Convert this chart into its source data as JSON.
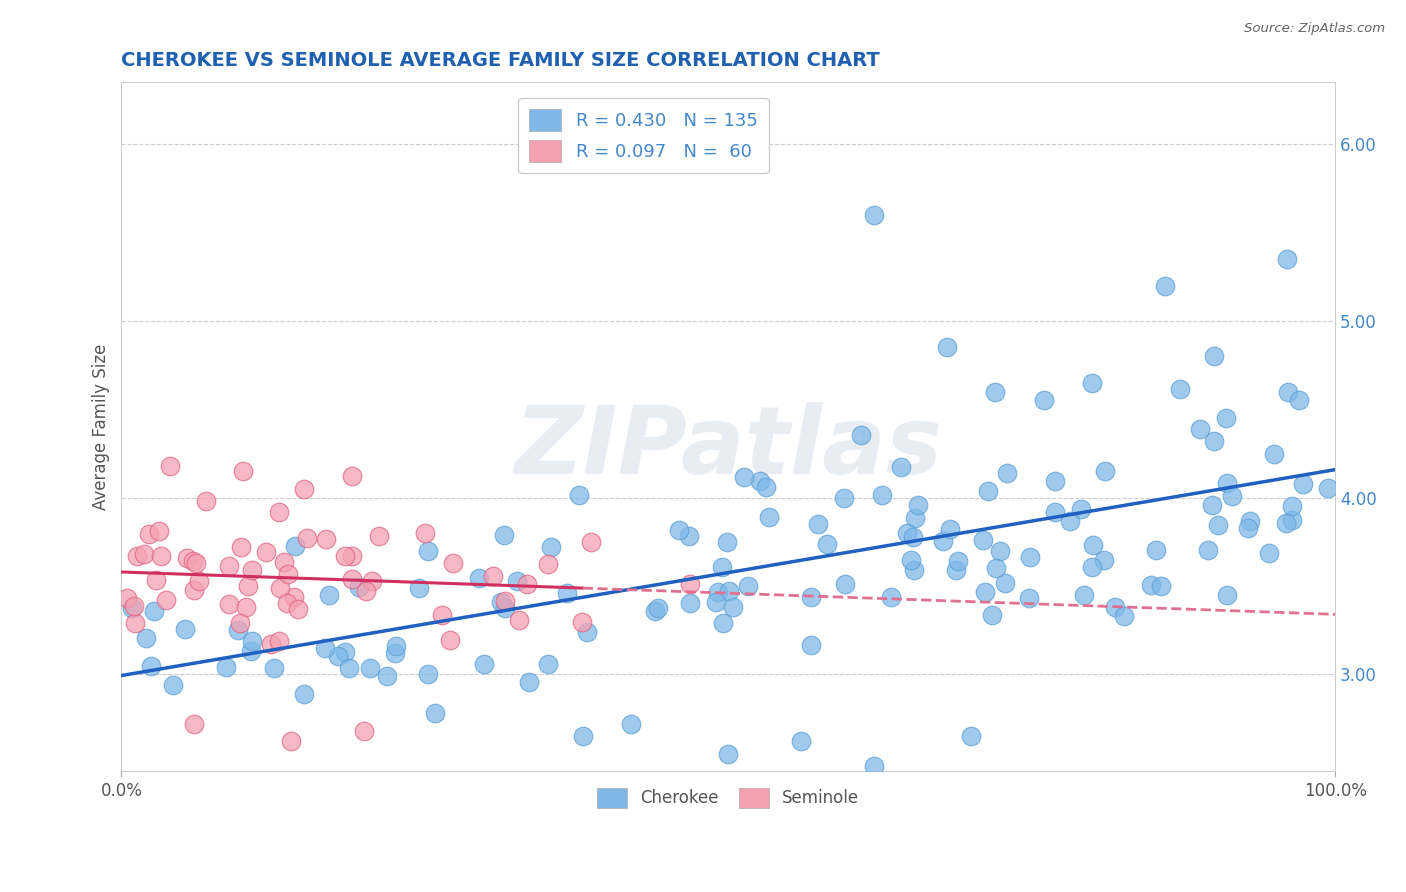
{
  "title": "CHEROKEE VS SEMINOLE AVERAGE FAMILY SIZE CORRELATION CHART",
  "source_text": "Source: ZipAtlas.com",
  "ylabel": "Average Family Size",
  "xlim": [
    0,
    1
  ],
  "ylim": [
    2.45,
    6.35
  ],
  "yticks": [
    3.0,
    4.0,
    5.0,
    6.0
  ],
  "xtick_labels": [
    "0.0%",
    "100.0%"
  ],
  "cherokee_color": "#7fb8e8",
  "cherokee_edge_color": "#5a9fd4",
  "seminole_color": "#f4a0b0",
  "seminole_edge_color": "#e06080",
  "trend_cherokee_color": "#2060c0",
  "trend_seminole_color_solid": "#d03060",
  "trend_seminole_color_dash": "#e07090",
  "watermark": "ZIPatlas",
  "background_color": "#ffffff",
  "grid_color": "#c8c8c8",
  "title_color": "#2060b0",
  "tick_color": "#4488cc",
  "axis_label_color": "#555555",
  "title_fontsize": 14,
  "axis_label_fontsize": 12,
  "tick_fontsize": 12,
  "legend1_fontsize": 13,
  "legend2_fontsize": 12,
  "cherokee_R": "0.430",
  "cherokee_N": "135",
  "seminole_R": "0.097",
  "seminole_N": "60"
}
